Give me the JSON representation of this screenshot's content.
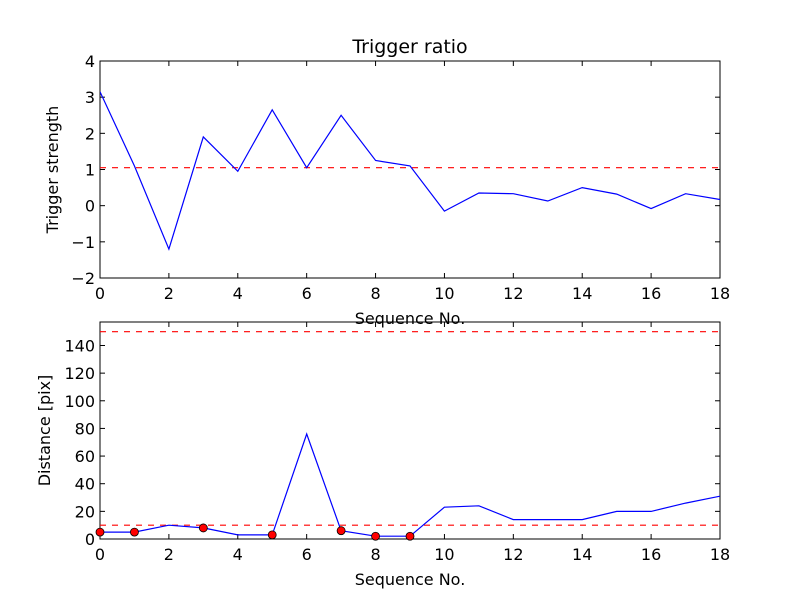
{
  "chart_data": [
    {
      "type": "line",
      "title": "Trigger ratio",
      "xlabel": "Sequence No.",
      "ylabel": "Trigger strength",
      "xlim": [
        0,
        18
      ],
      "ylim": [
        -2,
        4
      ],
      "xticks": [
        0,
        2,
        4,
        6,
        8,
        10,
        12,
        14,
        16,
        18
      ],
      "yticks": [
        -2,
        -1,
        0,
        1,
        2,
        3,
        4
      ],
      "grid": false,
      "series": [
        {
          "color": "#0000ff",
          "x": [
            0,
            1,
            2,
            3,
            4,
            5,
            6,
            7,
            8,
            9,
            10,
            11,
            12,
            13,
            14,
            15,
            16,
            17,
            18
          ],
          "y": [
            3.15,
            1.1,
            -1.2,
            1.9,
            0.95,
            2.65,
            1.05,
            2.5,
            1.25,
            1.1,
            -0.15,
            0.35,
            0.33,
            0.13,
            0.5,
            0.32,
            -0.08,
            0.33,
            0.17
          ]
        }
      ],
      "hlines": [
        {
          "y": 1.05,
          "color": "#ff0000",
          "style": "dashed"
        }
      ]
    },
    {
      "type": "line",
      "title": "",
      "xlabel": "Sequence No.",
      "ylabel": "Distance [pix]",
      "xlim": [
        0,
        18
      ],
      "ylim": [
        0,
        157
      ],
      "xticks": [
        0,
        2,
        4,
        6,
        8,
        10,
        12,
        14,
        16,
        18
      ],
      "yticks": [
        0,
        20,
        40,
        60,
        80,
        100,
        120,
        140
      ],
      "grid": false,
      "series": [
        {
          "color": "#0000ff",
          "x": [
            0,
            1,
            2,
            3,
            4,
            5,
            6,
            7,
            8,
            9,
            10,
            11,
            12,
            13,
            14,
            15,
            16,
            17,
            18
          ],
          "y": [
            5,
            5,
            10,
            8,
            3,
            3,
            76,
            6,
            2,
            2,
            23,
            24,
            14,
            14,
            14,
            20,
            20,
            26,
            31
          ]
        }
      ],
      "markers": {
        "color": "#ff0000",
        "x": [
          0,
          1,
          3,
          5,
          7,
          8,
          9
        ],
        "y": [
          5,
          5,
          8,
          3,
          6,
          2,
          2
        ]
      },
      "hlines": [
        {
          "y": 150,
          "color": "#ff0000",
          "style": "dashed"
        },
        {
          "y": 10,
          "color": "#ff0000",
          "style": "dashed"
        }
      ]
    }
  ]
}
